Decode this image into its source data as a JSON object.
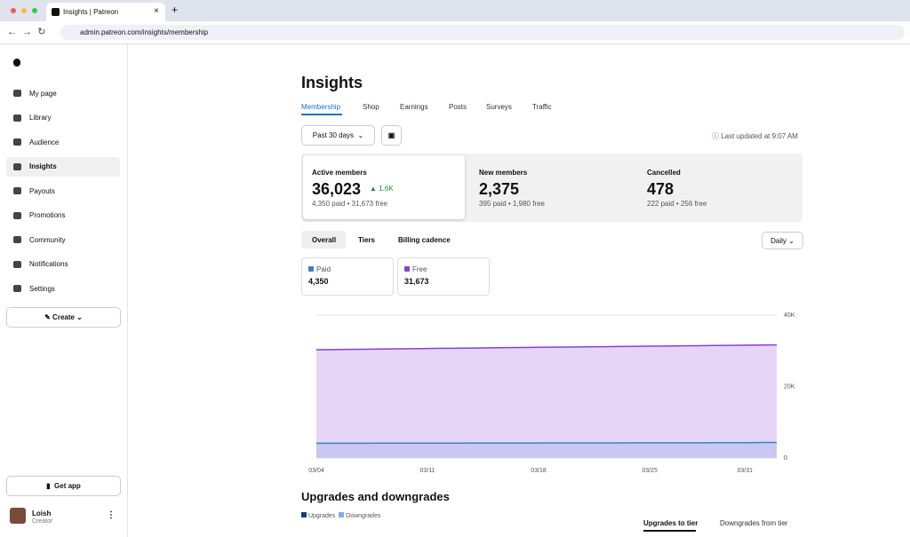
{
  "browser": {
    "tab_title": "Insights | Patreon",
    "url": "admin.patreon.com/insights/membership"
  },
  "sidebar": {
    "nav": [
      "My page",
      "Library",
      "Audience",
      "Insights",
      "Payouts",
      "Promotions",
      "Community",
      "Notifications",
      "Settings"
    ],
    "create": "Create",
    "get_app": "Get app",
    "user": {
      "name": "Loish",
      "role": "Creator"
    }
  },
  "main": {
    "title": "Insights",
    "tabs": [
      "Membership",
      "Shop",
      "Earnings",
      "Posts",
      "Surveys",
      "Traffic"
    ],
    "period": "Past 30 days",
    "last_updated": "Last updated at 9:07 AM",
    "stats": [
      {
        "label": "Active members",
        "value": "36,023",
        "change": "1.6K",
        "detail": [
          "4,350 paid",
          "31,673 free"
        ]
      },
      {
        "label": "New members",
        "value": "2,375",
        "detail": [
          "395 paid",
          "1,980 free"
        ]
      },
      {
        "label": "Cancelled",
        "value": "478",
        "detail": [
          "222 paid",
          "256 free"
        ]
      }
    ],
    "views": [
      "Overall",
      "Tiers",
      "Billing cadence"
    ],
    "interval": "Daily",
    "totals": [
      "4,350",
      "31,673"
    ],
    "section_title": "Upgrades and downgrades",
    "section_legend": [
      "Upgrades",
      "Downgrades"
    ],
    "section_tabs": [
      "Upgrades to tier",
      "Downgrades from tier"
    ]
  },
  "chart_data": {
    "type": "area",
    "categories": [
      "03/04",
      null,
      null,
      null,
      null,
      null,
      null,
      "03/11",
      null,
      null,
      null,
      null,
      null,
      null,
      "03/18",
      null,
      null,
      null,
      null,
      null,
      null,
      "03/25",
      null,
      null,
      null,
      null,
      null,
      "03/31",
      null,
      null
    ],
    "series": [
      {
        "name": "Free",
        "color": "#8b3fd6",
        "values": [
          30300,
          30350,
          30390,
          30440,
          30500,
          30560,
          30600,
          30650,
          30700,
          30740,
          30790,
          30840,
          30890,
          30930,
          30980,
          31020,
          31070,
          31110,
          31160,
          31200,
          31250,
          31300,
          31340,
          31390,
          31440,
          31480,
          31530,
          31580,
          31630,
          31673
        ]
      },
      {
        "name": "Paid",
        "color": "#3b82c4",
        "values": [
          4120,
          4130,
          4130,
          4140,
          4150,
          4150,
          4160,
          4160,
          4170,
          4170,
          4180,
          4190,
          4190,
          4200,
          4200,
          4210,
          4210,
          4220,
          4230,
          4230,
          4240,
          4250,
          4250,
          4260,
          4270,
          4280,
          4290,
          4300,
          4340,
          4350
        ]
      }
    ],
    "ylim": [
      0,
      40000
    ],
    "yticks": [
      0,
      {
        "value": 20000,
        "label": "20K"
      },
      {
        "value": 40000,
        "label": "40K"
      }
    ],
    "grid": true
  }
}
